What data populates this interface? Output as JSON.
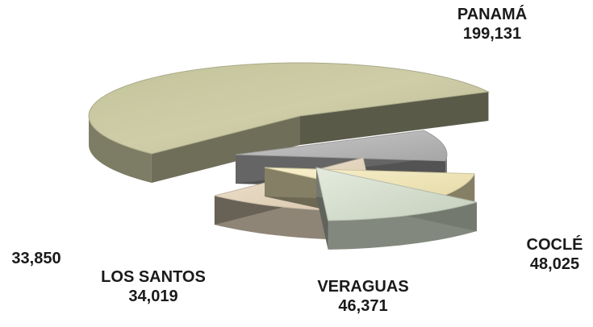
{
  "chart_data": {
    "type": "pie",
    "style": "3d-exploded",
    "slices": [
      {
        "label": "PANAMÁ",
        "value": 199131,
        "value_text": "199,131",
        "color": "#c9c8a2"
      },
      {
        "label": "COCLÉ",
        "value": 48025,
        "value_text": "48,025",
        "color": "#e6d7c0"
      },
      {
        "label": "VERAGUAS",
        "value": 46371,
        "value_text": "46,371",
        "color": "#d3dccb"
      },
      {
        "label": "LOS SANTOS",
        "value": 34019,
        "value_text": "34,019",
        "color": "#f0e6b8"
      },
      {
        "label": "",
        "value": 33850,
        "value_text": "33,850",
        "color": "#b8b8b8"
      }
    ]
  }
}
